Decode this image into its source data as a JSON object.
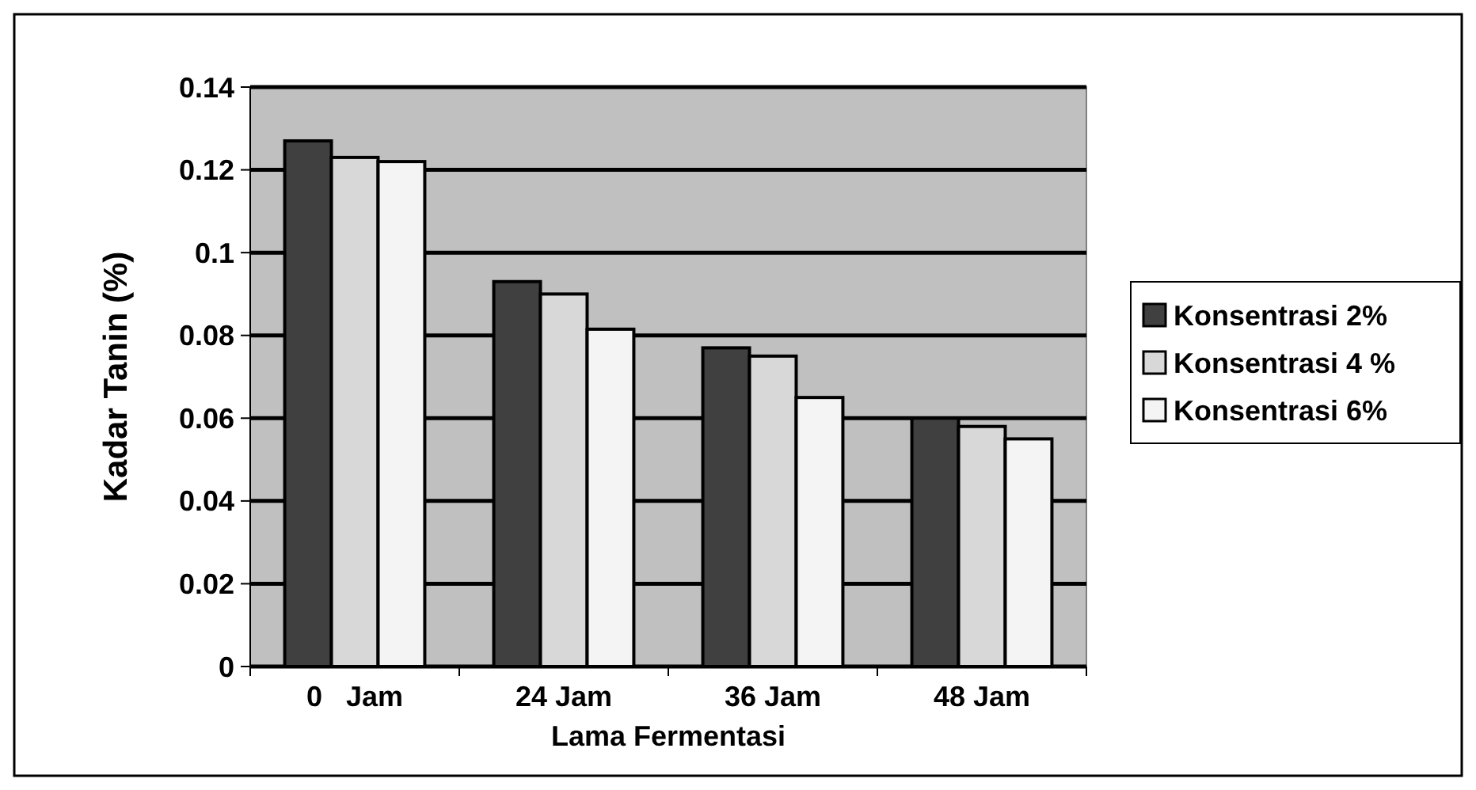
{
  "chart_data": {
    "type": "bar",
    "xlabel": "Lama Fermentasi",
    "ylabel": "Kadar Tanin (%)",
    "categories": [
      "0   Jam",
      "24 Jam",
      "36 Jam",
      "48 Jam"
    ],
    "series": [
      {
        "name": "Konsentrasi 2%",
        "color": "#404040",
        "values": [
          0.127,
          0.093,
          0.077,
          0.06
        ]
      },
      {
        "name": "Konsentrasi 4 %",
        "color": "#d8d8d8",
        "values": [
          0.123,
          0.09,
          0.075,
          0.058
        ]
      },
      {
        "name": "Konsentrasi 6%",
        "color": "#f4f4f4",
        "values": [
          0.122,
          0.0815,
          0.065,
          0.055
        ]
      }
    ],
    "ylim": [
      0,
      0.14
    ],
    "yticks": [
      0,
      0.02,
      0.04,
      0.06,
      0.08,
      0.1,
      0.12,
      0.14
    ],
    "grid": "y",
    "legend": "right"
  }
}
